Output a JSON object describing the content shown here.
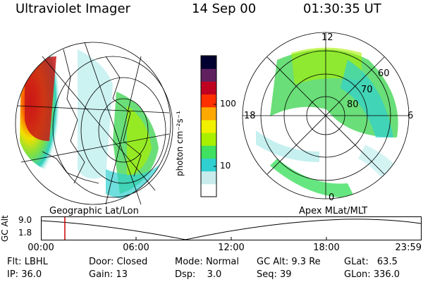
{
  "header": {
    "instrument": "Ultraviolet Imager",
    "date": "14 Sep 00",
    "time": "01:30:35 UT"
  },
  "panels": {
    "left_caption": "Geographic Lat/Lon",
    "right_caption": "Apex MLat/MLT"
  },
  "polar_plot": {
    "mlt_labels": {
      "top": "12",
      "left": "18",
      "right": "6",
      "bottom": "0"
    },
    "lat_labels": [
      "60",
      "70",
      "80"
    ]
  },
  "colorbar": {
    "unit_label": "photon cm⁻²s⁻¹",
    "ticks": [
      "100",
      "10"
    ],
    "colors": [
      "#ffffff",
      "#c8ecec",
      "#30d0d0",
      "#40e060",
      "#a8f000",
      "#f0f000",
      "#ffa800",
      "#ff3000",
      "#c00020",
      "#602060",
      "#000030"
    ]
  },
  "altitude_plot": {
    "ylabel": "GC Alt",
    "yticks": [
      "9.0",
      "1.8"
    ],
    "xticks": [
      "00:00",
      "06:00",
      "12:00",
      "18:00",
      "23:59"
    ],
    "marker_hour": 1.51,
    "marker_color": "#cc0000"
  },
  "status": {
    "flt": {
      "label": "Flt:",
      "value": "LBHL"
    },
    "ip": {
      "label": "IP:",
      "value": "36.0"
    },
    "door": {
      "label": "Door:",
      "value": "Closed"
    },
    "gain": {
      "label": "Gain:",
      "value": "13"
    },
    "mode": {
      "label": "Mode:",
      "value": "Normal"
    },
    "dsp": {
      "label": "Dsp:",
      "value": "3.0"
    },
    "gcalt": {
      "label": "GC Alt:",
      "value": "9.3 Re"
    },
    "seq": {
      "label": "Seq:",
      "value": "39"
    },
    "glat": {
      "label": "GLat:",
      "value": "63.5"
    },
    "glon": {
      "label": "GLon:",
      "value": "336.0"
    }
  }
}
